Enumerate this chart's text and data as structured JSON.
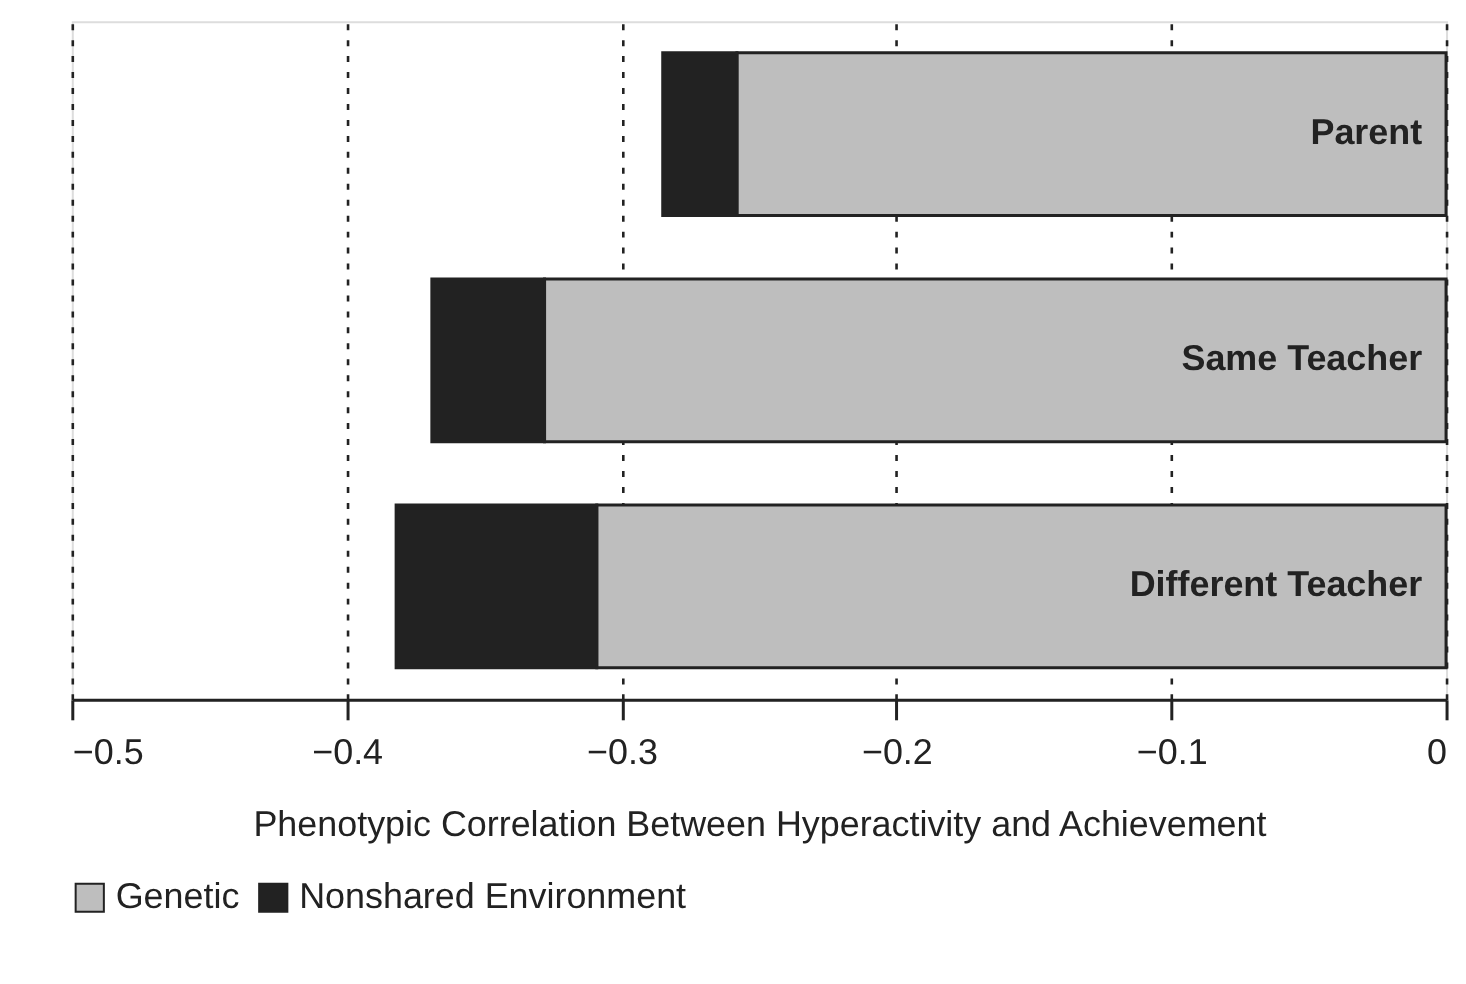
{
  "chart_data": {
    "type": "bar",
    "orientation": "horizontal",
    "stacked": true,
    "xlabel": "Phenotypic Correlation Between Hyperactivity and Achievement",
    "categories": [
      "Parent",
      "Same Teacher",
      "Different Teacher"
    ],
    "series": [
      {
        "name": "Genetic",
        "color": "#bebebe",
        "values": [
          -0.258,
          -0.328,
          -0.309
        ]
      },
      {
        "name": "Nonshared Environment",
        "color": "#222222",
        "values": [
          -0.027,
          -0.041,
          -0.073
        ]
      }
    ],
    "xlim": [
      -0.5,
      0
    ],
    "xticks": [
      {
        "value": -0.5,
        "label": "−0.5"
      },
      {
        "value": -0.4,
        "label": "−0.4"
      },
      {
        "value": -0.3,
        "label": "−0.3"
      },
      {
        "value": -0.2,
        "label": "−0.2"
      },
      {
        "value": -0.1,
        "label": "−0.1"
      },
      0
    ],
    "grid": "x",
    "legend": "bottom"
  }
}
